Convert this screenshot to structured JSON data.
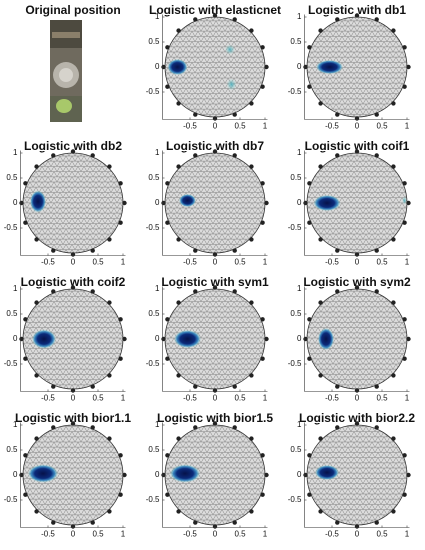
{
  "panels": [
    {
      "title": "Original position"
    },
    {
      "title": "Logistic with elasticnet",
      "xlim": [
        -1.05,
        1.05
      ],
      "ylim": [
        -1.05,
        1.05
      ],
      "xticks": [
        -0.5,
        0,
        0.5,
        1
      ],
      "yticks": [
        -0.5,
        0,
        0.5,
        1
      ]
    },
    {
      "title": "Logistic with db1",
      "xlim": [
        -1.05,
        1.05
      ],
      "ylim": [
        -1.05,
        1.05
      ],
      "xticks": [
        -0.5,
        0,
        0.5,
        1
      ],
      "yticks": [
        -0.5,
        0,
        0.5,
        1
      ]
    },
    {
      "title": "Logistic with db2",
      "xlim": [
        -1.05,
        1.05
      ],
      "ylim": [
        -1.05,
        1.05
      ],
      "xticks": [
        -0.5,
        0,
        0.5,
        1
      ],
      "yticks": [
        -0.5,
        0,
        0.5,
        1
      ]
    },
    {
      "title": "Logistic with db7",
      "xlim": [
        -1.05,
        1.05
      ],
      "ylim": [
        -1.05,
        1.05
      ],
      "xticks": [
        -0.5,
        0,
        0.5,
        1
      ],
      "yticks": [
        -0.5,
        0,
        0.5,
        1
      ]
    },
    {
      "title": "Logistic with coif1",
      "xlim": [
        -1.05,
        1.05
      ],
      "ylim": [
        -1.05,
        1.05
      ],
      "xticks": [
        -0.5,
        0,
        0.5,
        1
      ],
      "yticks": [
        -0.5,
        0,
        0.5,
        1
      ]
    },
    {
      "title": "Logistic with coif2",
      "xlim": [
        -1.05,
        1.05
      ],
      "ylim": [
        -1.05,
        1.05
      ],
      "xticks": [
        -0.5,
        0,
        0.5,
        1
      ],
      "yticks": [
        -0.5,
        0,
        0.5,
        1
      ]
    },
    {
      "title": "Logistic with sym1",
      "xlim": [
        -1.05,
        1.05
      ],
      "ylim": [
        -1.05,
        1.05
      ],
      "xticks": [
        -0.5,
        0,
        0.5,
        1
      ],
      "yticks": [
        -0.5,
        0,
        0.5,
        1
      ]
    },
    {
      "title": "Logistic with sym2",
      "xlim": [
        -1.05,
        1.05
      ],
      "ylim": [
        -1.05,
        1.05
      ],
      "xticks": [
        -0.5,
        0,
        0.5,
        1
      ],
      "yticks": [
        -0.5,
        0,
        0.5,
        1
      ]
    },
    {
      "title": "Logistic with bior1.1",
      "xlim": [
        -1.05,
        1.05
      ],
      "ylim": [
        -1.05,
        1.05
      ],
      "xticks": [
        -0.5,
        0,
        0.5,
        1
      ],
      "yticks": [
        -0.5,
        0,
        0.5,
        1
      ]
    },
    {
      "title": "Logistic with bior1.5",
      "xlim": [
        -1.05,
        1.05
      ],
      "ylim": [
        -1.05,
        1.05
      ],
      "xticks": [
        -0.5,
        0,
        0.5,
        1
      ],
      "yticks": [
        -0.5,
        0,
        0.5,
        1
      ]
    },
    {
      "title": "Logistic with bior2.2",
      "xlim": [
        -1.05,
        1.05
      ],
      "ylim": [
        -1.05,
        1.05
      ],
      "xticks": [
        -0.5,
        0,
        0.5,
        1
      ],
      "yticks": [
        -0.5,
        0,
        0.5,
        1
      ]
    }
  ]
}
